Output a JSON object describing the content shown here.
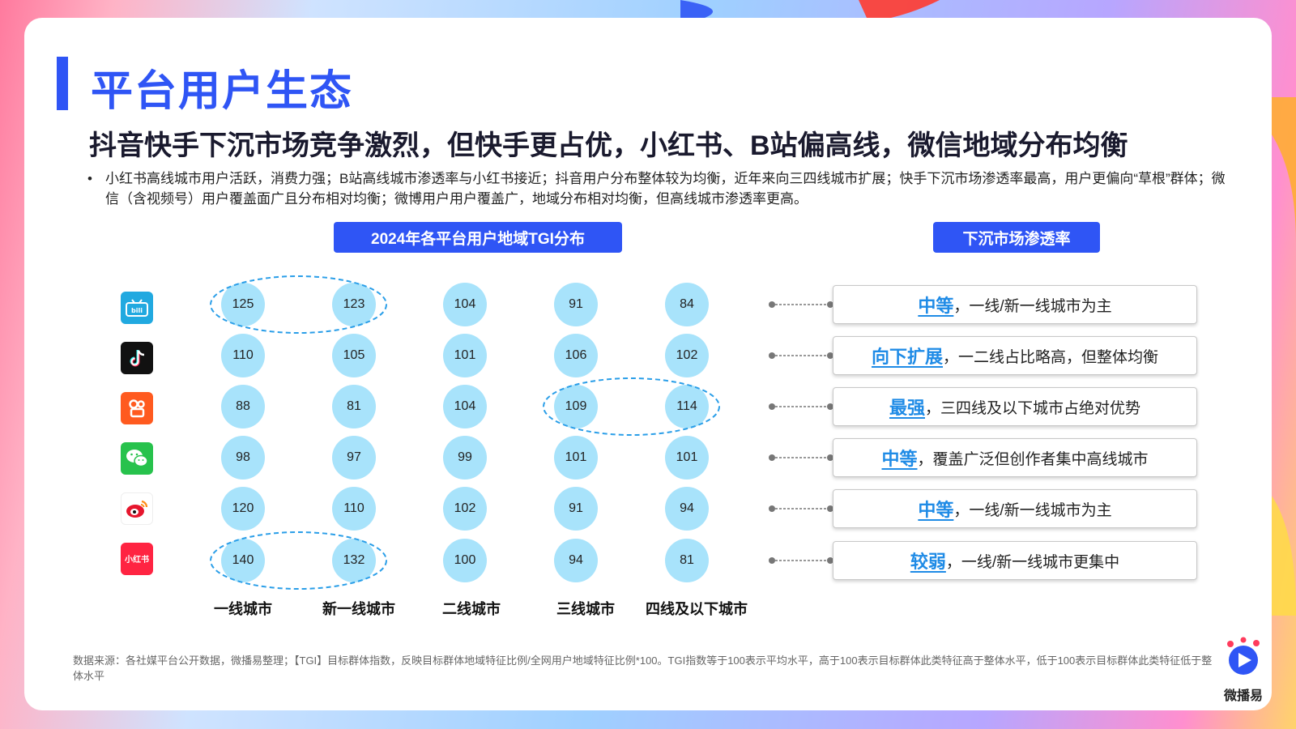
{
  "header": {
    "title": "平台用户生态",
    "subtitle": "抖音快手下沉市场竞争激烈，但快手更占优，小红书、B站偏高线，微信地域分布均衡",
    "bullet": "小红书高线城市用户活跃，消费力强；B站高线城市渗透率与小红书接近；抖音用户分布整体较为均衡，近年来向三四线城市扩展；快手下沉市场渗透率最高，用户更偏向“草根”群体；微信（含视频号）用户覆盖面广且分布相对均衡；微博用户用户覆盖广，地域分布相对均衡，但高线城市渗透率更高。"
  },
  "labels": {
    "tgi_heading": "2024年各平台用户地域TGI分布",
    "penetration_heading": "下沉市场渗透率"
  },
  "colors": {
    "accent": "#2f55f5",
    "bubble": "#a8e3fb",
    "keyword": "#1f8be6",
    "highlight_ring": "#2a9ee8"
  },
  "platforms": [
    {
      "icon": "bilibili-icon",
      "color": "#21a9e0",
      "glyph": "bilibili"
    },
    {
      "icon": "douyin-icon",
      "color": "#111111",
      "glyph": "♪"
    },
    {
      "icon": "kuaishou-icon",
      "color": "#ff5a1f",
      "glyph": "快"
    },
    {
      "icon": "wechat-icon",
      "color": "#27c24c",
      "glyph": "微"
    },
    {
      "icon": "weibo-icon",
      "color": "#ffffff",
      "glyph": "博"
    },
    {
      "icon": "xiaohongshu-icon",
      "color": "#ff2442",
      "glyph": "小红书"
    }
  ],
  "chart_data": {
    "type": "table",
    "categories": [
      "一线城市",
      "新一线城市",
      "二线城市",
      "三线城市",
      "四线及以下城市"
    ],
    "rows": [
      [
        125,
        123,
        104,
        91,
        84
      ],
      [
        110,
        105,
        101,
        106,
        102
      ],
      [
        88,
        81,
        104,
        109,
        114
      ],
      [
        98,
        97,
        99,
        101,
        101
      ],
      [
        120,
        110,
        102,
        91,
        94
      ],
      [
        140,
        132,
        100,
        94,
        81
      ]
    ],
    "highlights": [
      {
        "row": 0,
        "cols": [
          0,
          1
        ]
      },
      {
        "row": 2,
        "cols": [
          3,
          4
        ]
      },
      {
        "row": 5,
        "cols": [
          0,
          1
        ]
      }
    ]
  },
  "penetration": [
    {
      "keyword": "中等",
      "text": "，一线/新一线城市为主"
    },
    {
      "keyword": "向下扩展",
      "text": "，一二线占比略高，但整体均衡"
    },
    {
      "keyword": "最强",
      "text": "，三四线及以下城市占绝对优势"
    },
    {
      "keyword": "中等",
      "text": "，覆盖广泛但创作者集中高线城市"
    },
    {
      "keyword": "中等",
      "text": "，一线/新一线城市为主"
    },
    {
      "keyword": "较弱",
      "text": "，一线/新一线城市更集中"
    }
  ],
  "footnote": "数据来源：各社媒平台公开数据，微播易整理；【TGI】目标群体指数，反映目标群体地域特征比例/全网用户地域特征比例*100。TGI指数等于100表示平均水平，高于100表示目标群体此类特征高于整体水平，低于100表示目标群体此类特征低于整体水平",
  "brand": {
    "name": "微播易"
  }
}
